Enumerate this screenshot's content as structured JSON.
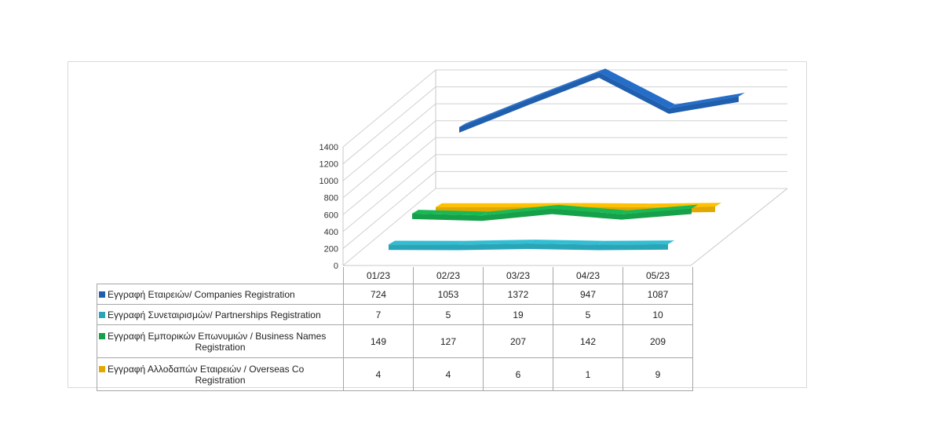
{
  "chart_data": {
    "type": "line",
    "categories": [
      "01/23",
      "02/23",
      "03/23",
      "04/23",
      "05/23"
    ],
    "y_ticks": [
      "0",
      "200",
      "400",
      "600",
      "800",
      "1000",
      "1200",
      "1400"
    ],
    "ylim": [
      0,
      1400
    ],
    "grid": true,
    "legend": "table-below",
    "series": [
      {
        "name": "Εγγραφή  Εταιρειών/ Companies Registration",
        "name_line1": "Εγγραφή  Εταιρειών/ Companies Registration",
        "name_line2": "",
        "color": "#1f5fae",
        "values": [
          724,
          1053,
          1372,
          947,
          1087
        ],
        "labels": [
          "724",
          "1053",
          "1372",
          "947",
          "1087"
        ]
      },
      {
        "name": "Εγγραφή  Συνεταιρισμών/ Partnerships Registration",
        "name_line1": "Εγγραφή  Συνεταιρισμών/ Partnerships Registration",
        "name_line2": "",
        "color": "#2aa5b8",
        "values": [
          7,
          5,
          19,
          5,
          10
        ],
        "labels": [
          "7",
          "5",
          "19",
          "5",
          "10"
        ]
      },
      {
        "name": "Εγγραφή  Εμπορικών  Επωνυμιών  / Business Names Registration",
        "name_line1": "Εγγραφή  Εμπορικών  Επωνυμιών  / Business Names",
        "name_line2": "Registration",
        "color": "#15a04a",
        "values": [
          149,
          127,
          207,
          142,
          209
        ],
        "labels": [
          "149",
          "127",
          "207",
          "142",
          "209"
        ]
      },
      {
        "name": "Εγγραφή  Αλλοδαπών  Εταιρειών  / Overseas Co Registration",
        "name_line1": "Εγγραφή  Αλλοδαπών  Εταιρειών  / Overseas Co",
        "name_line2": "Registration",
        "color": "#e0a800",
        "values": [
          4,
          4,
          6,
          1,
          9
        ],
        "labels": [
          "4",
          "4",
          "6",
          "1",
          "9"
        ]
      }
    ]
  }
}
